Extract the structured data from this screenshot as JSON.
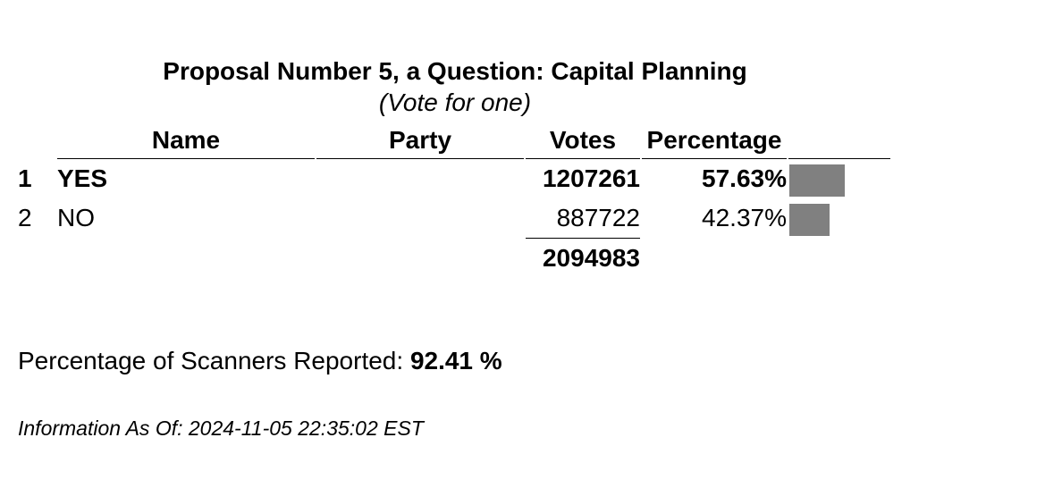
{
  "header": {
    "title": "Proposal Number 5, a Question: Capital Planning",
    "subtitle": "(Vote for one)"
  },
  "table": {
    "columns": {
      "name": "Name",
      "party": "Party",
      "votes": "Votes",
      "percentage": "Percentage"
    },
    "rows": [
      {
        "rank": "1",
        "name": "YES",
        "party": "",
        "votes": "1207261",
        "percentage": "57.63%",
        "share": 57.63,
        "winner": true
      },
      {
        "rank": "2",
        "name": "NO",
        "party": "",
        "votes": "887722",
        "percentage": "42.37%",
        "share": 42.37,
        "winner": false
      }
    ],
    "total_votes": "2094983",
    "bar_color": "#808080"
  },
  "scanners": {
    "label": "Percentage of Scanners Reported:",
    "value": "92.41 %"
  },
  "info": {
    "text": "Information As Of: 2024-11-05 22:35:02 EST"
  }
}
